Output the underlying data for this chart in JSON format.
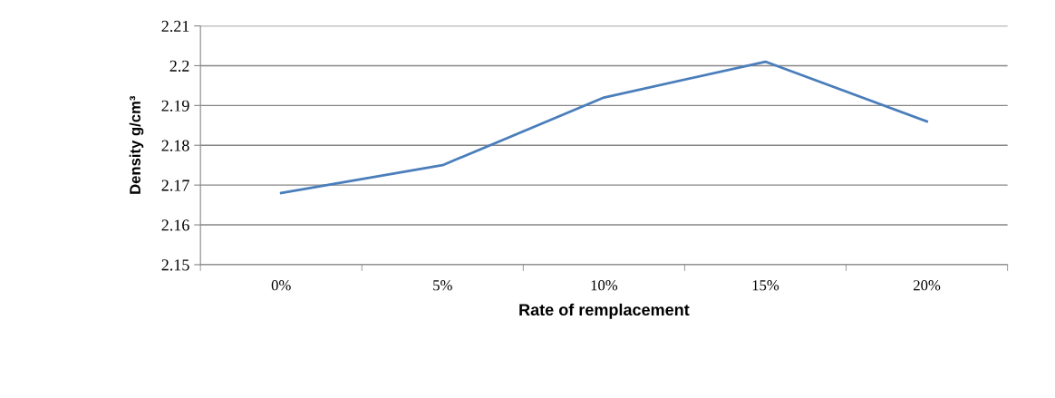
{
  "chart_data": {
    "type": "line",
    "xlabel": "Rate of remplacement",
    "ylabel": "Density g/cm³",
    "categories": [
      "0%",
      "5%",
      "10%",
      "15%",
      "20%"
    ],
    "series": [
      {
        "color": "#4a7ebb",
        "values": [
          2.168,
          2.175,
          2.192,
          2.201,
          2.186
        ]
      }
    ],
    "ylim": [
      2.15,
      2.21
    ],
    "yticks": [
      2.15,
      2.16,
      2.17,
      2.18,
      2.19,
      {
        "value": 2.2,
        "label": "2.2"
      },
      2.21
    ],
    "grid": "y",
    "marker": "none",
    "line_style": "solid"
  }
}
